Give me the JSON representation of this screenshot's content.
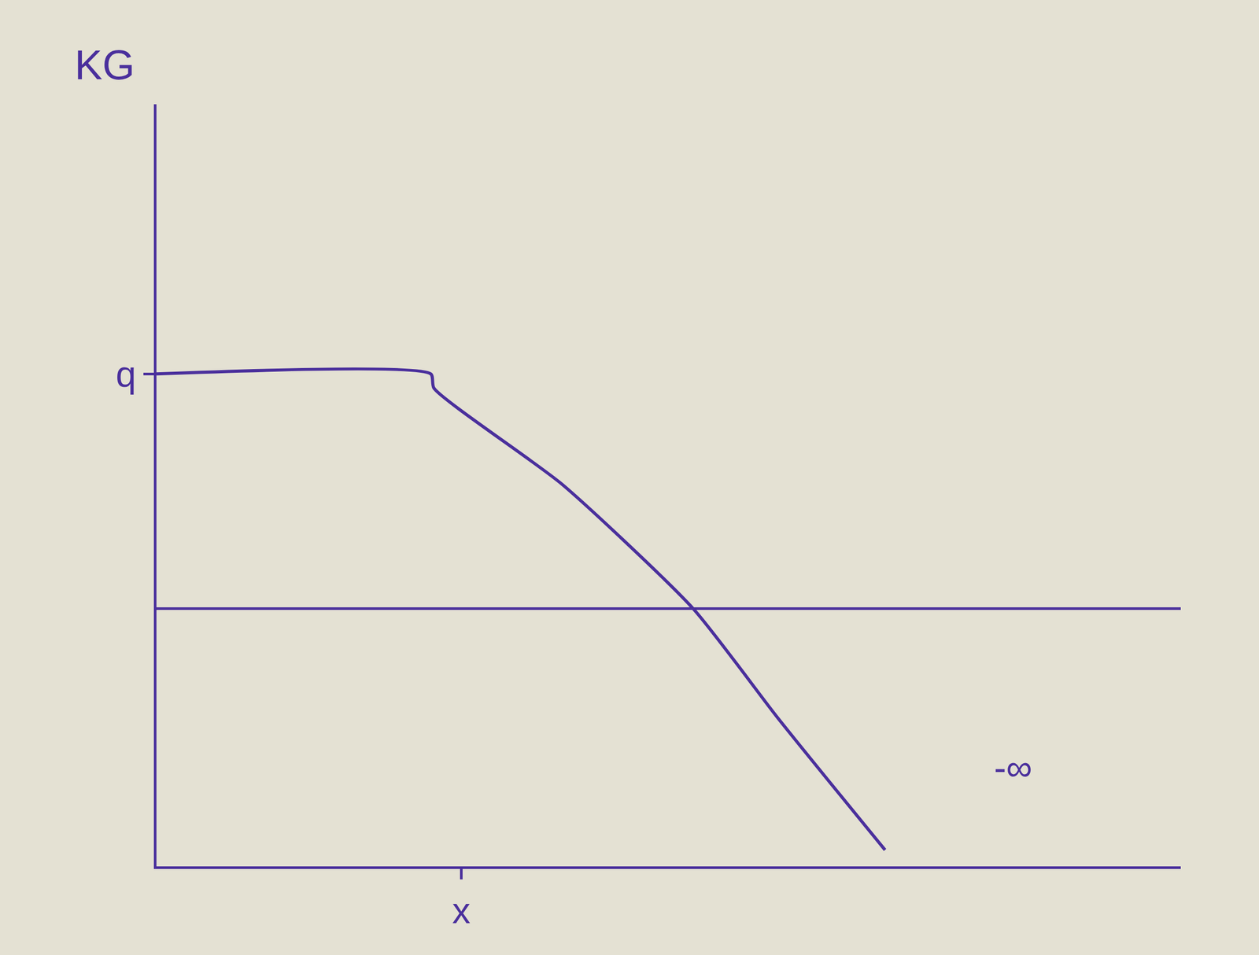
{
  "chart_data": {
    "type": "line",
    "y_label": "KG",
    "x": [
      0,
      0.9,
      0.91,
      1.33,
      1.76,
      2.04,
      2.39
    ],
    "values": [
      1,
      1,
      0.94,
      0.53,
      0,
      -0.47,
      -1.03
    ],
    "color": "#4a2f9c",
    "xlim": [
      0,
      3.36
    ],
    "ylim": [
      -1.1,
      2.15
    ],
    "xticks": [
      {
        "value": 1,
        "label": "x"
      }
    ],
    "yticks": [
      {
        "value": 1,
        "label": "q"
      }
    ],
    "grid": false,
    "annotations": [
      {
        "text": "-∞",
        "x": 2.81,
        "y": -0.68
      }
    ]
  }
}
